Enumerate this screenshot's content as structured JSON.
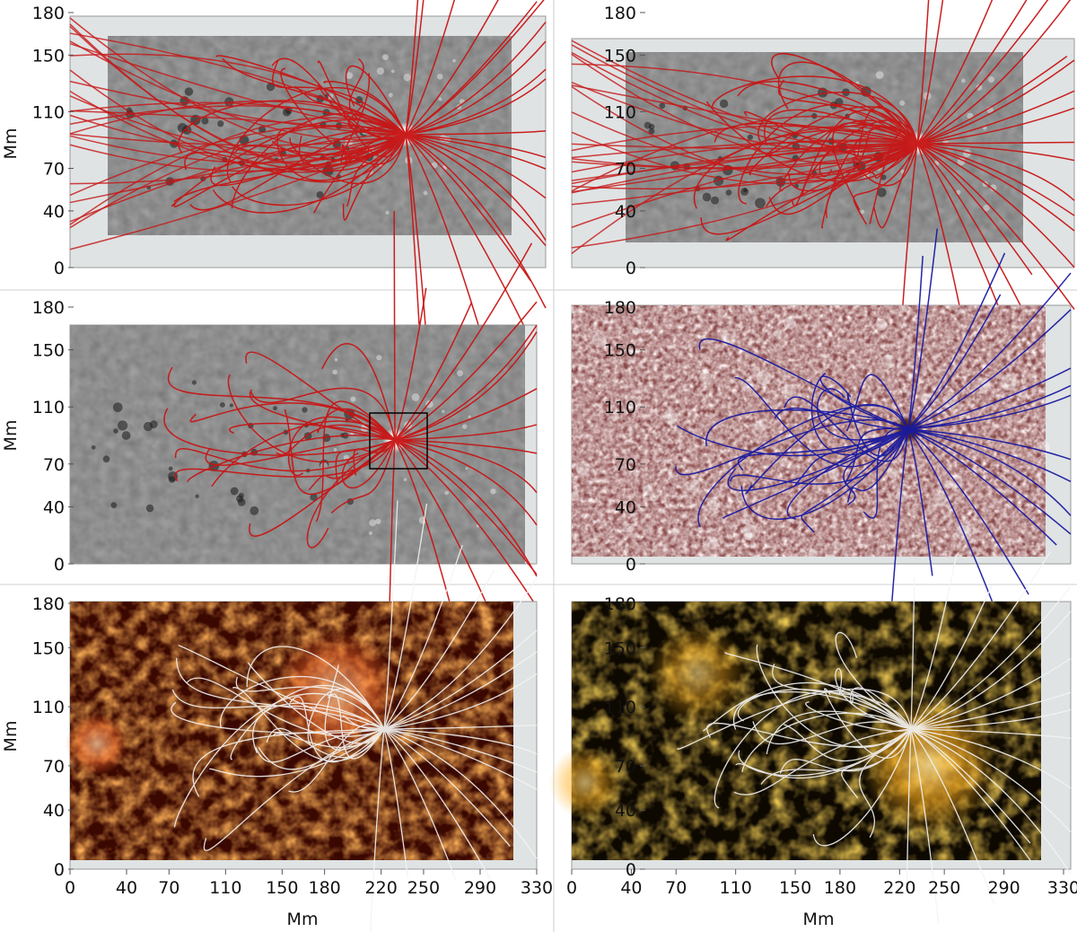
{
  "figure": {
    "y_axis_label": "Mm",
    "x_axis_label": "Mm",
    "y_ticks": [
      "0",
      "40",
      "70",
      "110",
      "150",
      "180"
    ],
    "x_ticks": [
      "0",
      "40",
      "70",
      "110",
      "150",
      "180",
      "220",
      "250",
      "290",
      "330"
    ]
  },
  "panels": [
    {
      "id": "top-left",
      "background": "magnetogram",
      "field_line_color": "#c81414"
    },
    {
      "id": "top-right",
      "background": "magnetogram",
      "field_line_color": "#c81414"
    },
    {
      "id": "mid-left",
      "background": "magnetogram",
      "field_line_color": "#c81414"
    },
    {
      "id": "mid-right",
      "background": "continuum",
      "field_line_color": "#1a1aa0"
    },
    {
      "id": "bot-left",
      "background": "euv-304",
      "field_line_color": "#f4f4f4"
    },
    {
      "id": "bot-right",
      "background": "euv-171",
      "field_line_color": "#f4f4f4"
    }
  ]
}
